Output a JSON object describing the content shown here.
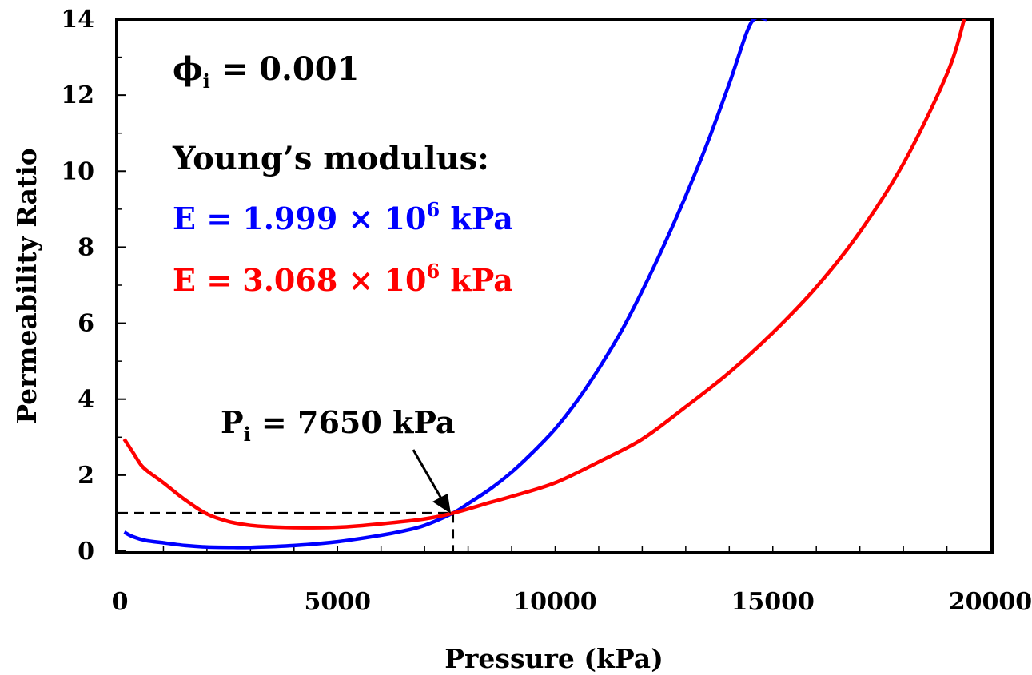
{
  "chart_data": {
    "type": "line",
    "title": "",
    "xlabel": "Pressure (kPa)",
    "ylabel": "Permeability Ratio",
    "xlim": [
      0,
      20000
    ],
    "ylim": [
      0,
      14
    ],
    "x_ticks": [
      0,
      5000,
      10000,
      15000,
      20000
    ],
    "x_tick_labels": [
      "0",
      "5000",
      "10000",
      "15000",
      "20000"
    ],
    "y_ticks": [
      0,
      2,
      4,
      6,
      8,
      10,
      12,
      14
    ],
    "y_tick_labels": [
      "0",
      "2",
      "4",
      "6",
      "8",
      "10",
      "12",
      "14"
    ],
    "grid": false,
    "series": [
      {
        "color": "#0000ff",
        "x": [
          100,
          300,
          600,
          1000,
          1500,
          2000,
          2500,
          3000,
          4000,
          5000,
          6000,
          6500,
          7000,
          7650,
          8000,
          8500,
          9000,
          9500,
          10000,
          10500,
          11000,
          11500,
          12000,
          12500,
          13000,
          13500,
          14000,
          14500,
          14850
        ],
        "y": [
          0.5,
          0.38,
          0.28,
          0.22,
          0.15,
          0.11,
          0.1,
          0.1,
          0.15,
          0.25,
          0.42,
          0.53,
          0.68,
          1.0,
          1.25,
          1.63,
          2.08,
          2.62,
          3.22,
          3.95,
          4.8,
          5.75,
          6.85,
          8.05,
          9.35,
          10.75,
          12.3,
          13.9,
          14.0
        ]
      },
      {
        "color": "#ff0000",
        "x": [
          100,
          300,
          500,
          700,
          1000,
          1500,
          2000,
          2500,
          3000,
          3500,
          4000,
          5000,
          6000,
          7000,
          7650,
          8500,
          9000,
          10000,
          11000,
          12000,
          13000,
          14000,
          15000,
          16000,
          17000,
          18000,
          19000,
          19400
        ],
        "y": [
          2.95,
          2.6,
          2.25,
          2.05,
          1.8,
          1.35,
          0.98,
          0.78,
          0.68,
          0.64,
          0.62,
          0.63,
          0.72,
          0.85,
          1.0,
          1.28,
          1.44,
          1.8,
          2.35,
          2.95,
          3.8,
          4.7,
          5.75,
          6.95,
          8.4,
          10.2,
          12.55,
          14.0
        ]
      }
    ],
    "reference_lines": {
      "x": 7650,
      "y": 1.0,
      "style": "dashed"
    },
    "annotations": {
      "phi": {
        "symbol": "ϕ",
        "sub": "i",
        "text": " = 0.001"
      },
      "modulus_title": "Young’s modulus:",
      "blue_label": {
        "prefix": "E = 1.999 × 10",
        "exp": "6",
        "suffix": " kPa"
      },
      "red_label": {
        "prefix": "E = 3.068 × 10",
        "exp": "6",
        "suffix": " kPa"
      },
      "pi_label": {
        "symbol": "P",
        "sub": "i",
        "text": " = 7650 kPa"
      }
    }
  }
}
